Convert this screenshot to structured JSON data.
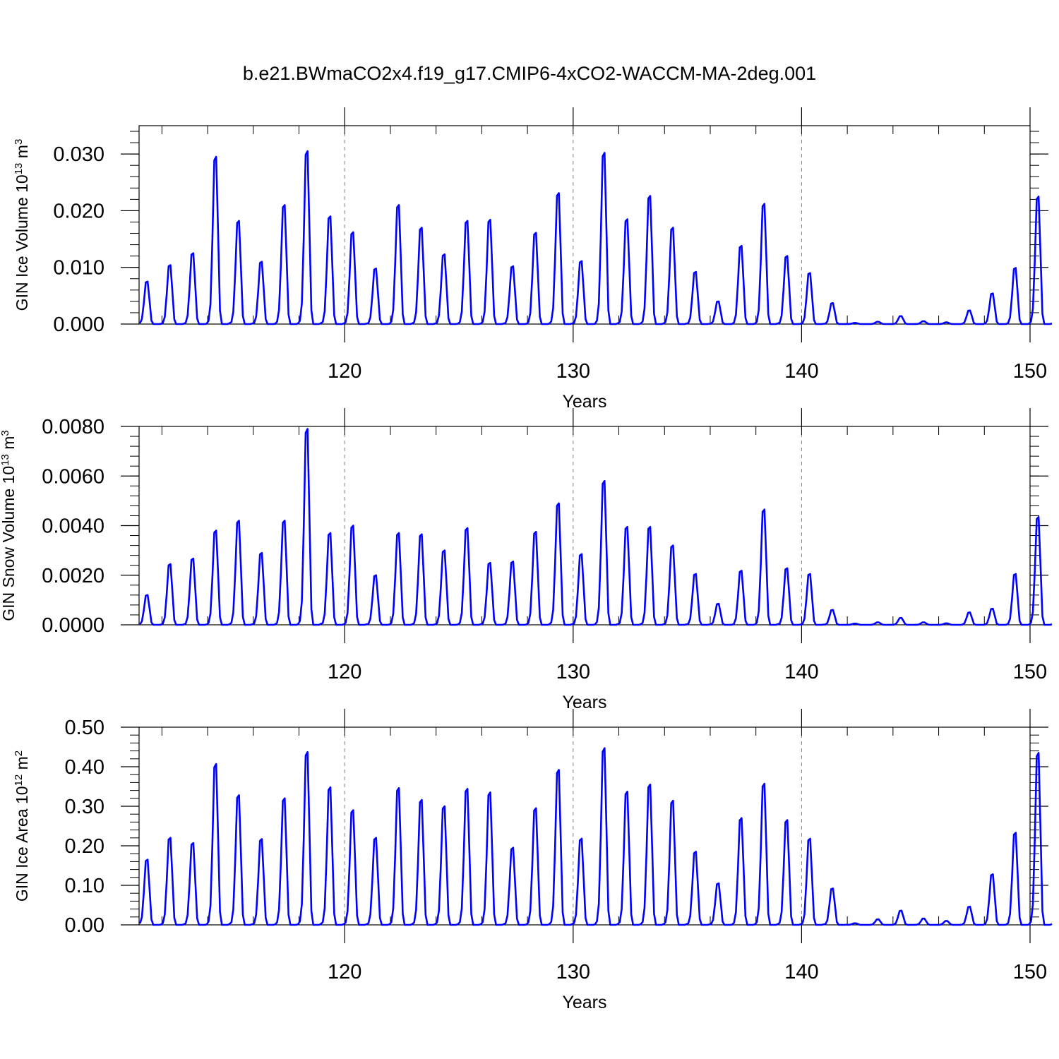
{
  "title": "b.e21.BWmaCO2x4.f19_g17.CMIP6-4xCO2-WACCM-MA-2deg.001",
  "colors": {
    "series": "#0000ff",
    "axis": "#000000",
    "grid": "#808080"
  },
  "chart_data": [
    {
      "type": "line",
      "name": "ice-volume",
      "xlabel": "Years",
      "ylabel": {
        "text": "GIN Ice Volume 10",
        "sup": "13",
        "unit": " m",
        "unit_sup": "3"
      },
      "xlim": [
        111,
        150
      ],
      "ylim": [
        0.0,
        0.035
      ],
      "xticks": [
        120,
        130,
        140,
        150
      ],
      "xtick_labels": [
        "120",
        "130",
        "140",
        "150"
      ],
      "yticks": [
        0.0,
        0.01,
        0.02,
        0.03
      ],
      "ytick_labels": [
        "0.000",
        "0.010",
        "0.020",
        "0.030"
      ],
      "grid_x": [
        120,
        130,
        140
      ],
      "annual_peaks": [
        0.0075,
        0.0104,
        0.0125,
        0.0295,
        0.0182,
        0.011,
        0.021,
        0.0305,
        0.019,
        0.0162,
        0.0098,
        0.021,
        0.017,
        0.0123,
        0.0182,
        0.0184,
        0.0102,
        0.0161,
        0.0231,
        0.0111,
        0.0302,
        0.0185,
        0.0226,
        0.017,
        0.0092,
        0.004,
        0.0138,
        0.0212,
        0.012,
        0.009,
        0.0037,
        0.0002,
        0.0004,
        0.0014,
        0.0005,
        0.0003,
        0.0024,
        0.0054,
        0.0099,
        0.0225
      ]
    },
    {
      "type": "line",
      "name": "snow-volume",
      "xlabel": "Years",
      "ylabel": {
        "text": "GIN Snow Volume 10",
        "sup": "13",
        "unit": " m",
        "unit_sup": "3"
      },
      "xlim": [
        111,
        150
      ],
      "ylim": [
        0.0,
        0.008
      ],
      "xticks": [
        120,
        130,
        140,
        150
      ],
      "xtick_labels": [
        "120",
        "130",
        "140",
        "150"
      ],
      "yticks": [
        0.0,
        0.002,
        0.004,
        0.006,
        0.008
      ],
      "ytick_labels": [
        "0.0000",
        "0.0020",
        "0.0040",
        "0.0060",
        "0.0080"
      ],
      "grid_x": [
        120,
        130,
        140
      ],
      "annual_peaks": [
        0.0012,
        0.00245,
        0.00267,
        0.0038,
        0.0042,
        0.0029,
        0.0042,
        0.0079,
        0.0037,
        0.004,
        0.002,
        0.0037,
        0.00365,
        0.003,
        0.0039,
        0.0025,
        0.00255,
        0.00375,
        0.0049,
        0.00285,
        0.0058,
        0.00395,
        0.00395,
        0.0032,
        0.00205,
        0.00085,
        0.00218,
        0.00465,
        0.00228,
        0.00205,
        0.0006,
        5e-05,
        0.0001,
        0.00028,
        0.0001,
        6e-05,
        0.0005,
        0.00065,
        0.00205,
        0.00435
      ]
    },
    {
      "type": "line",
      "name": "ice-area",
      "xlabel": "Years",
      "ylabel": {
        "text": "GIN Ice Area 10",
        "sup": "12",
        "unit": " m",
        "unit_sup": "2"
      },
      "xlim": [
        111,
        150
      ],
      "ylim": [
        0.0,
        0.5
      ],
      "xticks": [
        120,
        130,
        140,
        150
      ],
      "xtick_labels": [
        "120",
        "130",
        "140",
        "150"
      ],
      "yticks": [
        0.0,
        0.1,
        0.2,
        0.3,
        0.4,
        0.5
      ],
      "ytick_labels": [
        "0.00",
        "0.10",
        "0.20",
        "0.30",
        "0.40",
        "0.50"
      ],
      "grid_x": [
        120,
        130,
        140
      ],
      "annual_peaks": [
        0.165,
        0.22,
        0.207,
        0.407,
        0.328,
        0.217,
        0.32,
        0.437,
        0.348,
        0.29,
        0.22,
        0.346,
        0.316,
        0.3,
        0.344,
        0.335,
        0.195,
        0.295,
        0.392,
        0.218,
        0.447,
        0.337,
        0.355,
        0.314,
        0.185,
        0.105,
        0.27,
        0.357,
        0.265,
        0.218,
        0.092,
        0.004,
        0.014,
        0.036,
        0.016,
        0.01,
        0.046,
        0.128,
        0.233,
        0.435
      ]
    }
  ]
}
